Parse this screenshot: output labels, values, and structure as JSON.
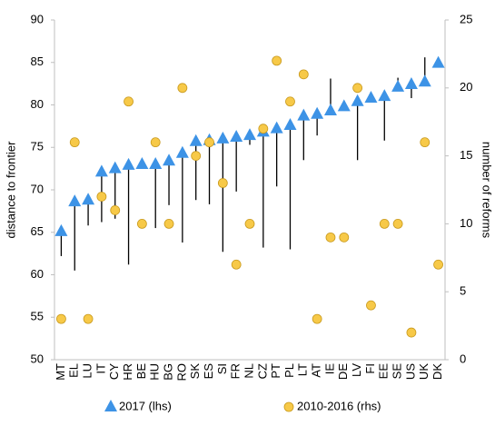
{
  "chart_data": {
    "type": "scatter",
    "categories": [
      "MT",
      "EL",
      "LU",
      "IT",
      "CY",
      "HR",
      "BE",
      "HU",
      "BG",
      "RO",
      "SK",
      "ES",
      "SI",
      "FR",
      "NL",
      "CZ",
      "PT",
      "PL",
      "LT",
      "AT",
      "IE",
      "DE",
      "LV",
      "FI",
      "EE",
      "SE",
      "US",
      "UK",
      "DK"
    ],
    "series": [
      {
        "name": "2017 (lhs)",
        "color": "#3d93e6",
        "marker": "triangle",
        "values": [
          65.1,
          68.6,
          68.8,
          72.1,
          72.5,
          72.9,
          73.0,
          73.0,
          73.4,
          74.3,
          75.7,
          75.8,
          76.0,
          76.2,
          76.4,
          76.8,
          77.2,
          77.6,
          78.7,
          78.9,
          79.3,
          79.8,
          80.4,
          80.8,
          81.0,
          82.1,
          82.4,
          82.7,
          84.9
        ]
      },
      {
        "name": "2010-2016 (rhs)",
        "color": "#f7c948",
        "marker": "circle",
        "axis": "y2",
        "values": [
          3,
          16,
          3,
          12,
          11,
          19,
          10,
          16,
          10,
          20,
          15,
          16,
          13,
          7,
          10,
          17,
          22,
          19,
          21,
          3,
          9,
          9,
          20,
          4,
          10,
          10,
          2,
          16,
          7
        ]
      }
    ],
    "ranges": [
      62.2,
      60.5,
      65.8,
      66.2,
      66.6,
      61.2,
      null,
      65.5,
      68.2,
      63.8,
      68.8,
      68.3,
      62.7,
      69.8,
      75.3,
      63.2,
      70.4,
      63.0,
      73.5,
      76.4,
      83.1,
      null,
      73.5,
      null,
      75.8,
      83.2,
      80.8,
      85.6,
      null
    ],
    "range_color": "#000000",
    "ylabel": "distance to frontier",
    "y2label": "number of reforms",
    "ylim": [
      50,
      90
    ],
    "yticks": [
      50,
      55,
      60,
      65,
      70,
      75,
      80,
      85,
      90
    ],
    "y2lim": [
      0,
      25
    ],
    "y2ticks": [
      0,
      5,
      10,
      15,
      20,
      25
    ],
    "grid": false
  }
}
